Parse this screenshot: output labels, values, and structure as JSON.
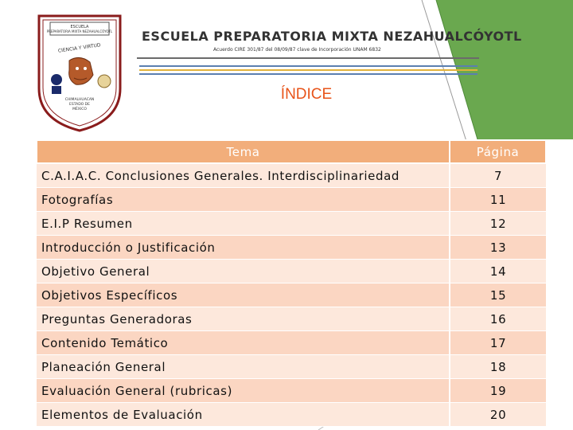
{
  "colors": {
    "accent_green": "#6aa84f",
    "title_orange": "#e8541a",
    "header_fill": "#f2ae7b",
    "row_light": "#fde8dc",
    "row_dark": "#fbd6c2"
  },
  "header": {
    "school_name": "ESCUELA PREPARATORIA MIXTA NEZAHUALCÓYOTL",
    "subtitle": "Acuerdo CIRE 301/87 del 08/09/87 clave de Incorporación UNAM 6832",
    "crest": {
      "top_text": "ESCUELA PREPARATORIA MIXTA NEZAHUALCÓYOTL",
      "motto": "CIENCIA Y VIRTUD",
      "location": "CHIMALHUACAN ESTADO DE MÉXICO",
      "icons": [
        "crest-icon",
        "coyote-icon",
        "shield-icon",
        "seal-icon"
      ]
    }
  },
  "title": "ÍNDICE",
  "table": {
    "headers": {
      "tema": "Tema",
      "pagina": "Página"
    },
    "rows": [
      {
        "tema": "C.A.I.A.C. Conclusiones Generales. Interdisciplinariedad",
        "pagina": "7"
      },
      {
        "tema": "Fotografías",
        "pagina": "11"
      },
      {
        "tema": "E.I.P Resumen",
        "pagina": "12"
      },
      {
        "tema": "Introducción o Justificación",
        "pagina": "13"
      },
      {
        "tema": "Objetivo General",
        "pagina": "14"
      },
      {
        "tema": "Objetivos Específicos",
        "pagina": "15"
      },
      {
        "tema": "Preguntas Generadoras",
        "pagina": "16"
      },
      {
        "tema": "Contenido Temático",
        "pagina": "17"
      },
      {
        "tema": "Planeación General",
        "pagina": "18"
      },
      {
        "tema": "Evaluación General (rubricas)",
        "pagina": "19"
      },
      {
        "tema": "Elementos de Evaluación",
        "pagina": "20"
      }
    ]
  }
}
